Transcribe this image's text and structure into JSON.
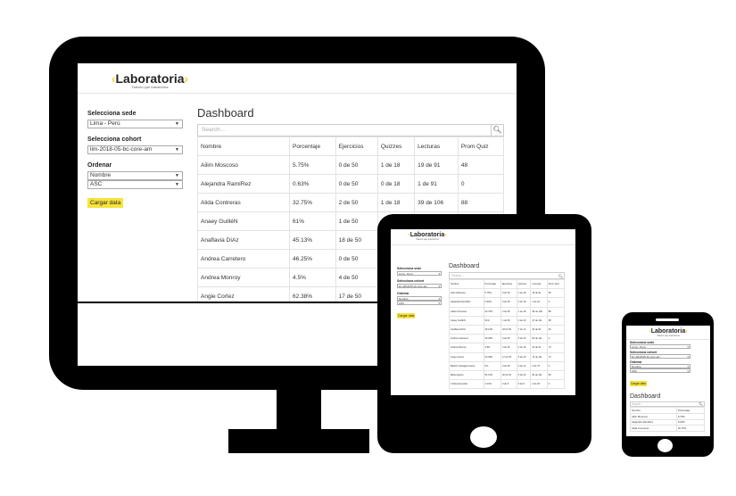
{
  "brand": {
    "name": "Laboratoria",
    "tagline": "Talento que transforma",
    "accent_color": "#f7e33b"
  },
  "sidebar": {
    "sede_label": "Selecciona sede",
    "sede_value": "Lima - Perú",
    "cohort_label": "Selecciona cohort",
    "cohort_value": "lim-2018-05-bc-core-am",
    "order_label": "Ordenar",
    "order_by_value": "Nombre",
    "order_dir_value": "ASC",
    "load_button": "Cargar data"
  },
  "main": {
    "title": "Dashboard",
    "search_placeholder": "Search..."
  },
  "table": {
    "columns": [
      "Nombre",
      "Porcentaje",
      "Ejercicios",
      "Quizzes",
      "Lecturas",
      "Prom Quiz"
    ],
    "rows": [
      [
        "Ailim Moscoso",
        "5.75%",
        "0 de 50",
        "1 de 18",
        "19 de 91",
        "48"
      ],
      [
        "Alejandra RamíRez",
        "0.63%",
        "0 de 50",
        "0 de 18",
        "1 de 91",
        "0"
      ],
      [
        "Alida Contreras",
        "32.75%",
        "2 de 50",
        "1 de 18",
        "39 de 106",
        "88"
      ],
      [
        "Anaey GuilléN",
        "61%",
        "1 de 50",
        "4 de 20",
        "47 de 111",
        "68"
      ],
      [
        "Anaflavia DíAz",
        "45.13%",
        "18 de 50",
        "7 de 14",
        "43 de 91",
        "63"
      ],
      [
        "Andrea Carretero",
        "46.25%",
        "0 de 50",
        "5 de 20",
        "60 de 111",
        "0"
      ],
      [
        "Andrea Monroy",
        "4.5%",
        "4 de 50",
        "2 de 18",
        "10 de 91",
        "74"
      ],
      [
        "Angie Cortez",
        "62.38%",
        "17 de 50",
        "5 de 20",
        "72 de 111",
        "73"
      ],
      [
        "Beatriz Castiglia Franco",
        "0%",
        "0 de 50",
        "0 de 12",
        "2 de 75",
        "0"
      ],
      [
        "Bella Aguirre",
        "81.13%",
        "32 de 50",
        "5 de 20",
        "96 de 111",
        "80"
      ],
      [
        "Cristina Escobar",
        "2.13%",
        "0 de 5",
        "0 de 5",
        "2 de 25",
        "0"
      ]
    ]
  }
}
